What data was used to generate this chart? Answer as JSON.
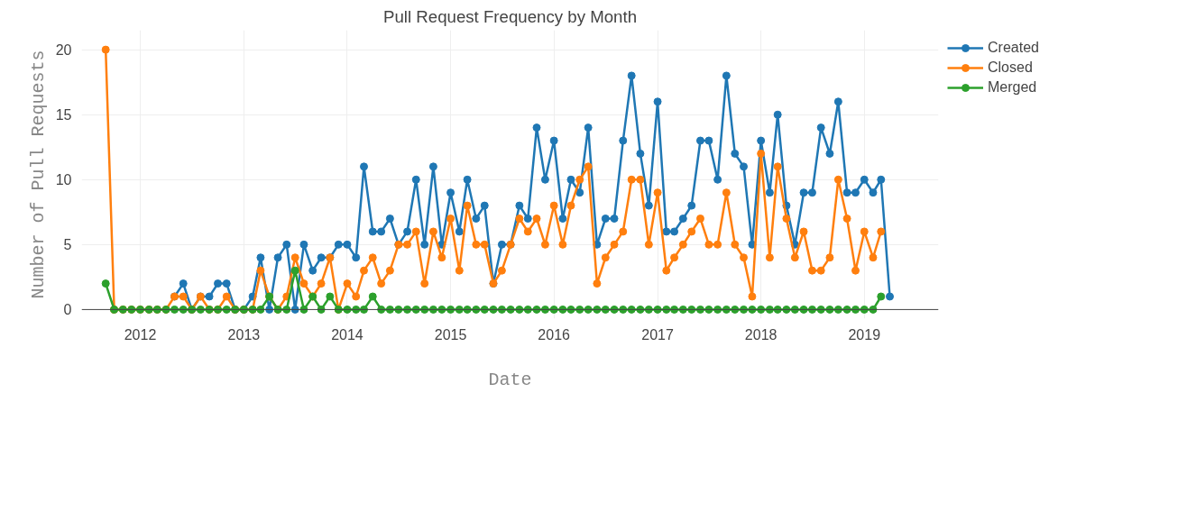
{
  "chart_data": {
    "type": "line",
    "title": "Pull Request Frequency by Month",
    "xlabel": "Date",
    "ylabel": "Number of Pull Requests",
    "x": [
      "2011-09",
      "2011-10",
      "2011-11",
      "2011-12",
      "2012-01",
      "2012-02",
      "2012-03",
      "2012-04",
      "2012-05",
      "2012-06",
      "2012-07",
      "2012-08",
      "2012-09",
      "2012-10",
      "2012-11",
      "2012-12",
      "2013-01",
      "2013-02",
      "2013-03",
      "2013-04",
      "2013-05",
      "2013-06",
      "2013-07",
      "2013-08",
      "2013-09",
      "2013-10",
      "2013-11",
      "2013-12",
      "2014-01",
      "2014-02",
      "2014-03",
      "2014-04",
      "2014-05",
      "2014-06",
      "2014-07",
      "2014-08",
      "2014-09",
      "2014-10",
      "2014-11",
      "2014-12",
      "2015-01",
      "2015-02",
      "2015-03",
      "2015-04",
      "2015-05",
      "2015-06",
      "2015-07",
      "2015-08",
      "2015-09",
      "2015-10",
      "2015-11",
      "2015-12",
      "2016-01",
      "2016-02",
      "2016-03",
      "2016-04",
      "2016-05",
      "2016-06",
      "2016-07",
      "2016-08",
      "2016-09",
      "2016-10",
      "2016-11",
      "2016-12",
      "2017-01",
      "2017-02",
      "2017-03",
      "2017-04",
      "2017-05",
      "2017-06",
      "2017-07",
      "2017-08",
      "2017-09",
      "2017-10",
      "2017-11",
      "2017-12",
      "2018-01",
      "2018-02",
      "2018-03",
      "2018-04",
      "2018-05",
      "2018-06",
      "2018-07",
      "2018-08",
      "2018-09",
      "2018-10",
      "2018-11",
      "2018-12",
      "2019-01",
      "2019-02",
      "2019-03",
      "2019-04"
    ],
    "series": [
      {
        "name": "Created",
        "color": "#1f77b4",
        "values": [
          null,
          null,
          null,
          null,
          null,
          null,
          null,
          null,
          1,
          2,
          0,
          1,
          1,
          2,
          2,
          0,
          0,
          1,
          4,
          0,
          4,
          5,
          0,
          5,
          3,
          4,
          4,
          5,
          5,
          4,
          11,
          6,
          6,
          7,
          5,
          6,
          10,
          5,
          11,
          5,
          9,
          6,
          10,
          7,
          8,
          2,
          5,
          5,
          8,
          7,
          14,
          10,
          13,
          7,
          10,
          9,
          14,
          5,
          7,
          7,
          13,
          18,
          12,
          8,
          16,
          6,
          6,
          7,
          8,
          13,
          13,
          10,
          18,
          12,
          11,
          5,
          13,
          9,
          15,
          8,
          5,
          9,
          9,
          14,
          12,
          16,
          9,
          9,
          10,
          9,
          10,
          1
        ]
      },
      {
        "name": "Closed",
        "color": "#ff7f0e",
        "values": [
          20,
          0,
          0,
          0,
          0,
          0,
          0,
          0,
          1,
          1,
          0,
          1,
          0,
          0,
          1,
          0,
          0,
          0,
          3,
          1,
          0,
          1,
          4,
          2,
          1,
          2,
          4,
          0,
          2,
          1,
          3,
          4,
          2,
          3,
          5,
          5,
          6,
          2,
          6,
          4,
          7,
          3,
          8,
          5,
          5,
          2,
          3,
          5,
          7,
          6,
          7,
          5,
          8,
          5,
          8,
          10,
          11,
          2,
          4,
          5,
          6,
          10,
          10,
          5,
          9,
          3,
          4,
          5,
          6,
          7,
          5,
          5,
          9,
          5,
          4,
          1,
          12,
          4,
          11,
          7,
          4,
          6,
          3,
          3,
          4,
          10,
          7,
          3,
          6,
          4,
          6,
          null
        ]
      },
      {
        "name": "Merged",
        "color": "#2ca02c",
        "values": [
          2,
          0,
          0,
          0,
          0,
          0,
          0,
          0,
          0,
          0,
          0,
          0,
          0,
          0,
          0,
          0,
          0,
          0,
          0,
          1,
          0,
          0,
          3,
          0,
          1,
          0,
          1,
          0,
          0,
          0,
          0,
          1,
          0,
          0,
          0,
          0,
          0,
          0,
          0,
          0,
          0,
          0,
          0,
          0,
          0,
          0,
          0,
          0,
          0,
          0,
          0,
          0,
          0,
          0,
          0,
          0,
          0,
          0,
          0,
          0,
          0,
          0,
          0,
          0,
          0,
          0,
          0,
          0,
          0,
          0,
          0,
          0,
          0,
          0,
          0,
          0,
          0,
          0,
          0,
          0,
          0,
          0,
          0,
          0,
          0,
          0,
          0,
          0,
          0,
          0,
          1,
          null
        ]
      }
    ],
    "xlim": [
      "2011-06-08",
      "2019-09-20"
    ],
    "xticks": [
      "2012",
      "2013",
      "2014",
      "2015",
      "2016",
      "2017",
      "2018",
      "2019"
    ],
    "ylim": [
      -0.7,
      21.5
    ],
    "yticks": [
      0,
      5,
      10,
      15,
      20
    ],
    "grid": true,
    "legend": "top right",
    "marker": "circle",
    "line_style": "solid"
  }
}
